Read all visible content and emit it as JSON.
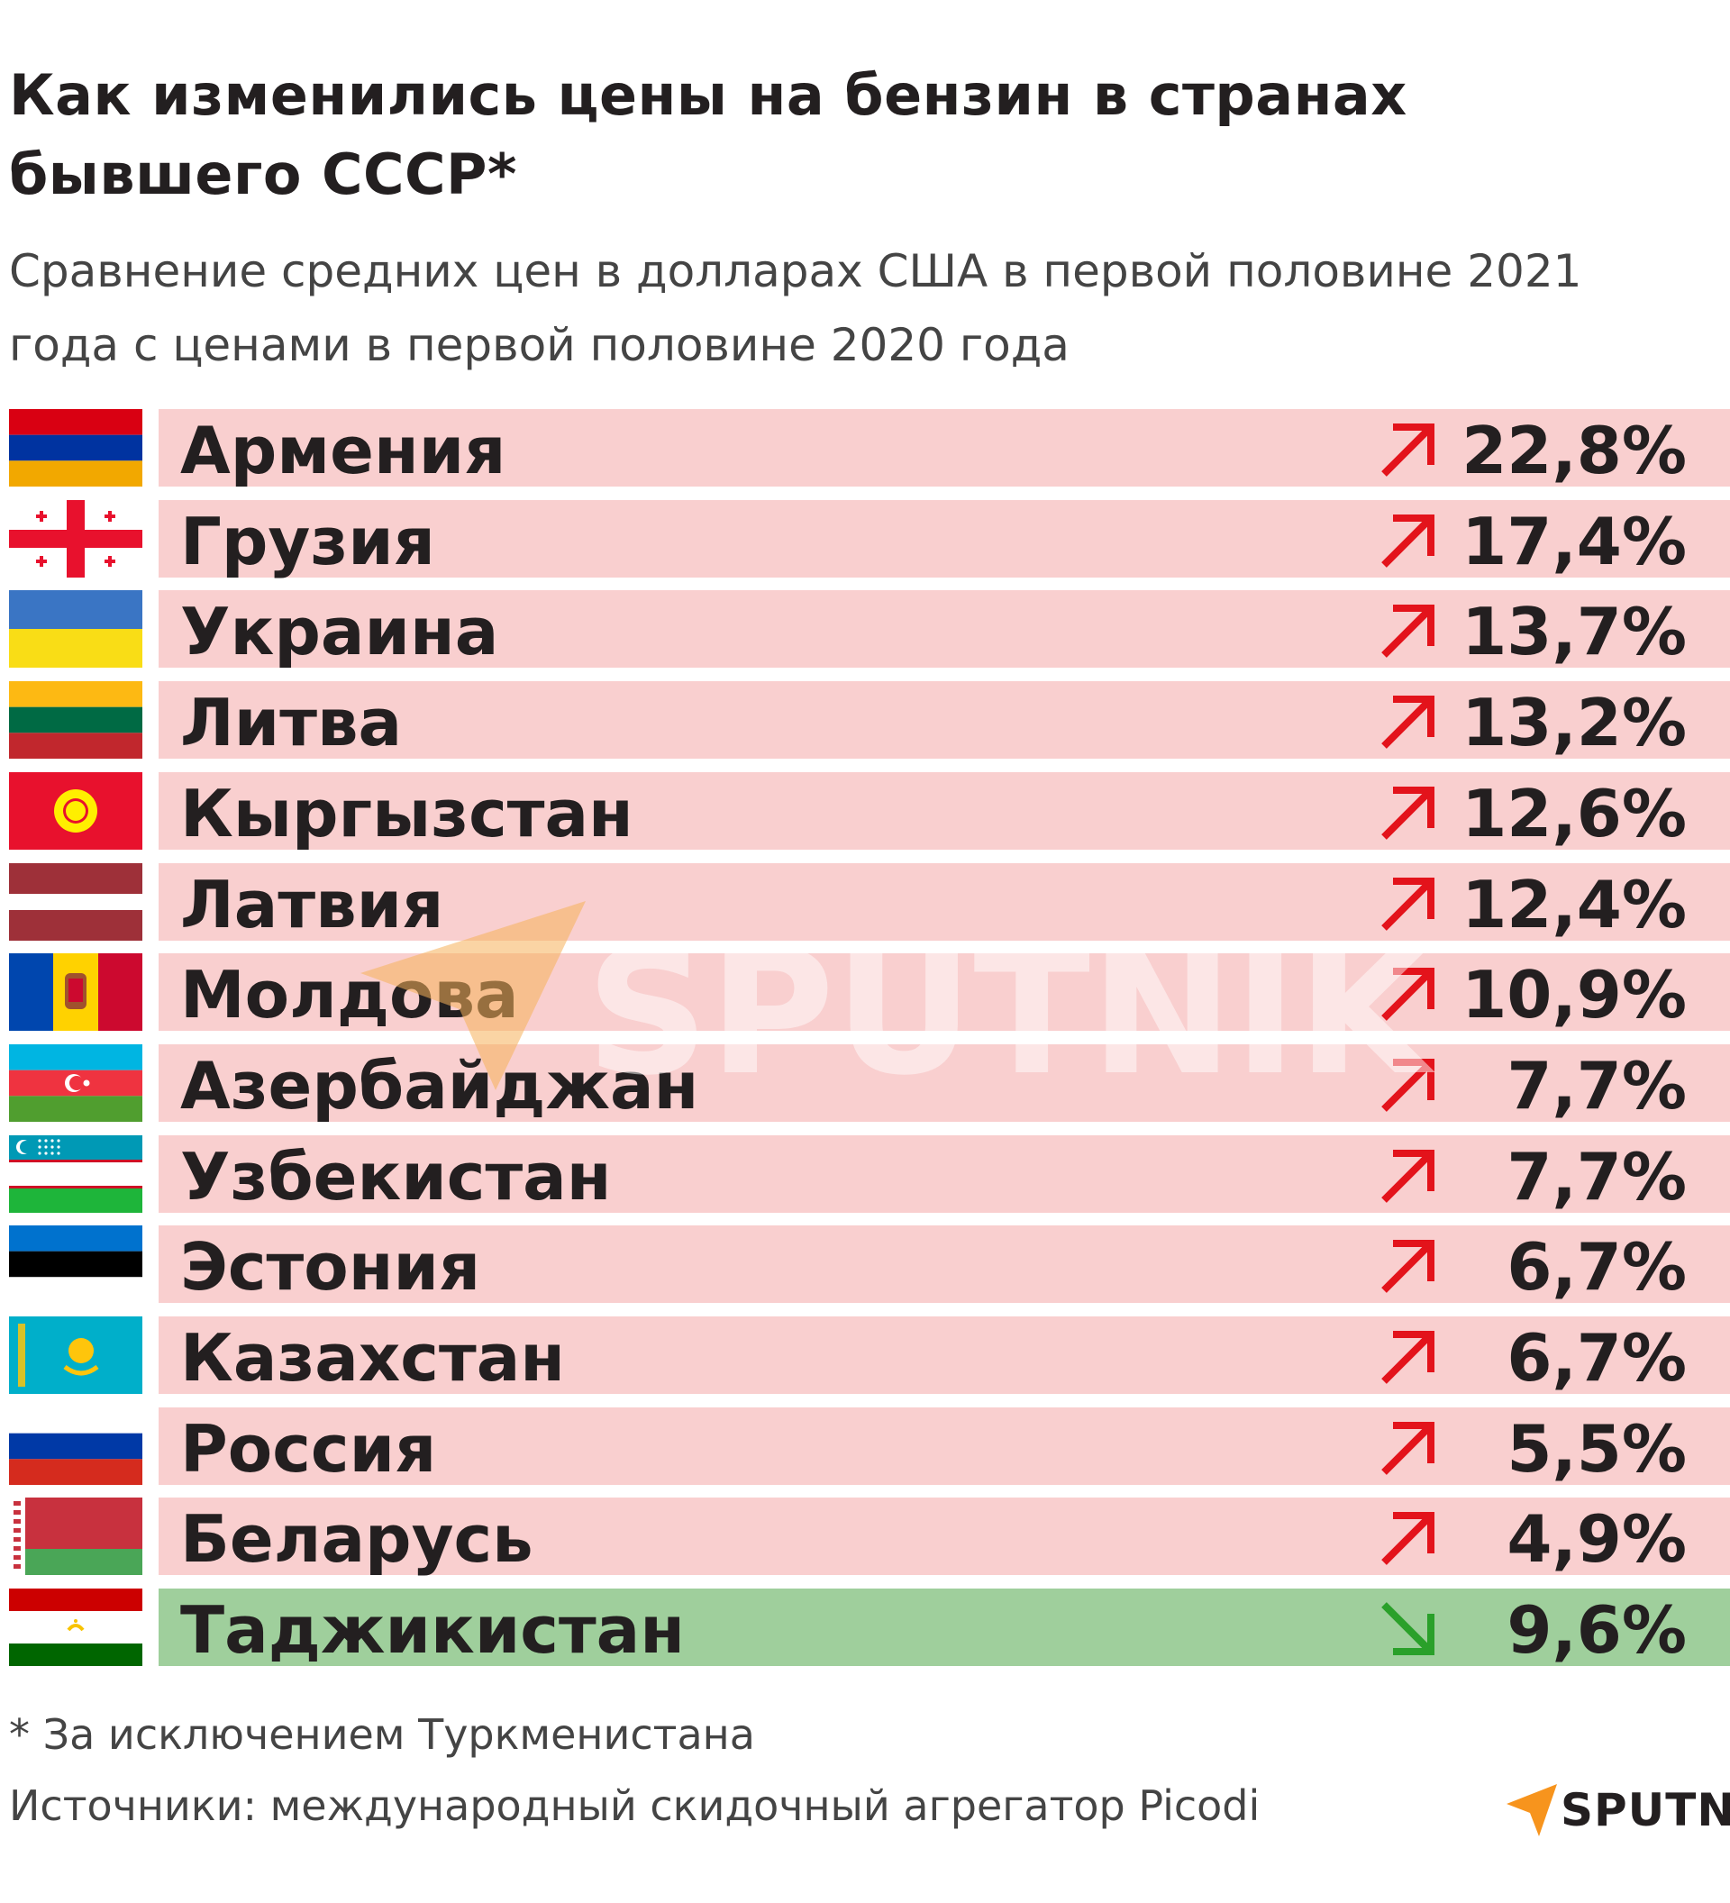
{
  "header": {
    "title": "Как изменились цены на бензин в странах бывшего СССР*",
    "subtitle_line1": "Сравнение средних цен в долларах США в первой половине 2021",
    "subtitle_line2": "года с ценами в первой половине 2020 года"
  },
  "colors": {
    "increase_bar": "#f9cfcf",
    "decrease_bar": "#9fcf9c",
    "up_arrow": "#e3131b",
    "down_arrow": "#2aa02a",
    "brand_orange": "#f7941d"
  },
  "chart_data": {
    "type": "table",
    "title": "Как изменились цены на бензин в странах бывшего СССР*",
    "subtitle": "Сравнение средних цен в долларах США в первой половине 2021 года с ценами в первой половине 2020 года",
    "columns": [
      "country",
      "direction",
      "change"
    ],
    "rows": [
      {
        "country": "Армения",
        "direction": "up",
        "label": "22,8%",
        "value": 22.8
      },
      {
        "country": "Грузия",
        "direction": "up",
        "label": "17,4%",
        "value": 17.4
      },
      {
        "country": "Украина",
        "direction": "up",
        "label": "13,7%",
        "value": 13.7
      },
      {
        "country": "Литва",
        "direction": "up",
        "label": "13,2%",
        "value": 13.2
      },
      {
        "country": "Кыргызстан",
        "direction": "up",
        "label": "12,6%",
        "value": 12.6
      },
      {
        "country": "Латвия",
        "direction": "up",
        "label": "12,4%",
        "value": 12.4
      },
      {
        "country": "Молдова",
        "direction": "up",
        "label": "10,9%",
        "value": 10.9
      },
      {
        "country": "Азербайджан",
        "direction": "up",
        "label": "7,7%",
        "value": 7.7
      },
      {
        "country": "Узбекистан",
        "direction": "up",
        "label": "7,7%",
        "value": 7.7
      },
      {
        "country": "Эстония",
        "direction": "up",
        "label": "6,7%",
        "value": 6.7
      },
      {
        "country": "Казахстан",
        "direction": "up",
        "label": "6,7%",
        "value": 6.7
      },
      {
        "country": "Россия",
        "direction": "up",
        "label": "5,5%",
        "value": 5.5
      },
      {
        "country": "Беларусь",
        "direction": "up",
        "label": "4,9%",
        "value": 4.9
      },
      {
        "country": "Таджикистан",
        "direction": "down",
        "label": "9,6%",
        "value": -9.6
      }
    ]
  },
  "flags": [
    "armenia-flag",
    "georgia-flag",
    "ukraine-flag",
    "lithuania-flag",
    "kyrgyzstan-flag",
    "latvia-flag",
    "moldova-flag",
    "azerbaijan-flag",
    "uzbekistan-flag",
    "estonia-flag",
    "kazakhstan-flag",
    "russia-flag",
    "belarus-flag",
    "tajikistan-flag"
  ],
  "footer": {
    "footnote": "* За исключением Туркменистана",
    "sources": "Источники: международный скидочный агрегатор Picodi",
    "logo_text": "SPUTNIK"
  },
  "watermark": {
    "text": "SPUTNIK"
  }
}
